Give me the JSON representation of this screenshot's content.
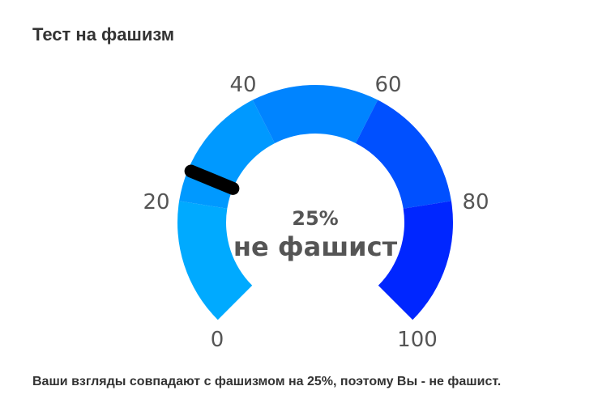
{
  "title": "Тест на фашизм",
  "gauge": {
    "min": 0,
    "max": 100,
    "value": 25,
    "value_label": "25%",
    "verdict": "не фашист",
    "ticks": [
      "0",
      "20",
      "40",
      "60",
      "80",
      "100"
    ],
    "band_colors": [
      "#00aaff",
      "#0099ff",
      "#0084ff",
      "#0050ff",
      "#0026ff"
    ],
    "needle_color": "#000000"
  },
  "description": "Ваши взгляды совпадают с фашизмом на 25%, поэтому Вы - не фашист."
}
